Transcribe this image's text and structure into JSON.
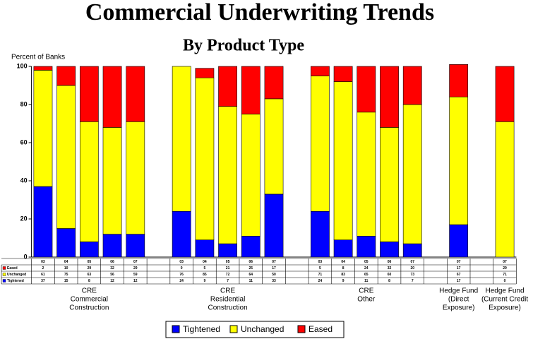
{
  "chart_data": {
    "type": "stacked_bar",
    "title": "Commercial Underwriting Trends",
    "subtitle": "By Product Type",
    "y_label": "Percent of Banks",
    "categories": [
      "03",
      "04",
      "05",
      "06",
      "07",
      null,
      "03",
      "04",
      "05",
      "06",
      "07",
      null,
      "03",
      "04",
      "05",
      "06",
      "07",
      null,
      "07",
      null,
      "07"
    ],
    "group_labels": [
      [
        "CRE",
        "Commercial",
        "Construction"
      ],
      [
        "CRE",
        "Residential",
        "Construction"
      ],
      [
        "CRE",
        "Other"
      ],
      [
        "Hedge Fund",
        "(Direct",
        "Exposure)"
      ],
      [
        "Hedge Fund",
        "(Current Credit",
        "Exposure)"
      ]
    ],
    "series": [
      {
        "name": "Tightened",
        "color": "#0000ff",
        "values": [
          37,
          15,
          8,
          12,
          12,
          null,
          24,
          9,
          7,
          11,
          33,
          null,
          24,
          9,
          11,
          8,
          7,
          null,
          17,
          null,
          0
        ]
      },
      {
        "name": "Unchanged",
        "color": "#ffff00",
        "values": [
          61,
          75,
          63,
          56,
          59,
          null,
          76,
          85,
          72,
          64,
          50,
          null,
          71,
          83,
          65,
          60,
          73,
          null,
          67,
          null,
          71
        ]
      },
      {
        "name": "Eased",
        "color": "#ff0000",
        "values": [
          2,
          10,
          29,
          32,
          29,
          null,
          0,
          5,
          21,
          25,
          17,
          null,
          5,
          8,
          24,
          32,
          20,
          null,
          17,
          null,
          29
        ]
      }
    ],
    "ylim": [
      0,
      100
    ],
    "yticks": [
      0,
      20,
      40,
      60,
      80,
      100
    ],
    "grid": false,
    "legend": "bottom"
  }
}
